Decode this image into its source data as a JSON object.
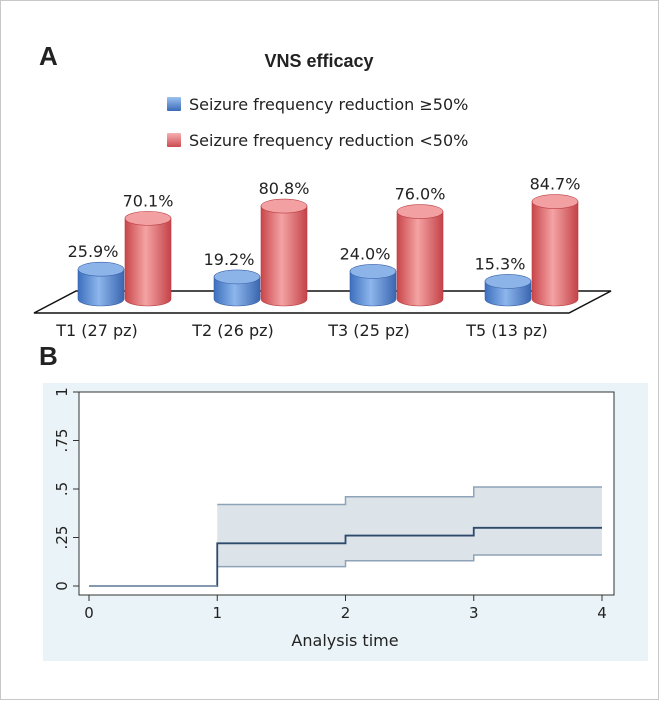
{
  "panelA": {
    "letter": "A",
    "chart_data": {
      "type": "bar",
      "title": "VNS efficacy",
      "legend_position": "top",
      "categories": [
        "T1 (27 pz)",
        "T2 (26 pz)",
        "T3 (25 pz)",
        "T5 (13 pz)"
      ],
      "series": [
        {
          "name": "Seizure frequency reduction ≥50%",
          "color": "#5b8fd6",
          "values": [
            25.9,
            19.2,
            24.0,
            15.3
          ],
          "labels": [
            "25.9%",
            "19.2%",
            "24.0%",
            "15.3%"
          ]
        },
        {
          "name": "Seizure frequency reduction <50%",
          "color": "#e0686b",
          "values": [
            70.1,
            80.8,
            76.0,
            84.7
          ],
          "labels": [
            "70.1%",
            "80.8%",
            "76.0%",
            "84.7%"
          ]
        }
      ],
      "ylim": [
        0,
        100
      ]
    }
  },
  "panelB": {
    "letter": "B",
    "chart_data": {
      "type": "line",
      "xlabel": "Analysis time",
      "ylabel": "",
      "xlim": [
        0,
        4
      ],
      "ylim": [
        0,
        1
      ],
      "xticks": [
        "0",
        "1",
        "2",
        "3",
        "4"
      ],
      "yticks": [
        "0",
        ".25",
        ".5",
        ".75",
        "1"
      ],
      "grid": false,
      "colors": {
        "background": "#eaf3f7",
        "line": "#2e4a6b",
        "band": "#dce4ea"
      },
      "estimate": {
        "x": [
          0,
          1,
          2,
          3,
          4
        ],
        "y": [
          0,
          0.22,
          0.26,
          0.3,
          0.3
        ]
      },
      "ci_upper": {
        "x": [
          0,
          1,
          2,
          3,
          4
        ],
        "y": [
          0,
          0.42,
          0.46,
          0.51,
          0.51
        ]
      },
      "ci_lower": {
        "x": [
          0,
          1,
          2,
          3,
          4
        ],
        "y": [
          0,
          0.1,
          0.13,
          0.16,
          0.16
        ]
      }
    }
  }
}
